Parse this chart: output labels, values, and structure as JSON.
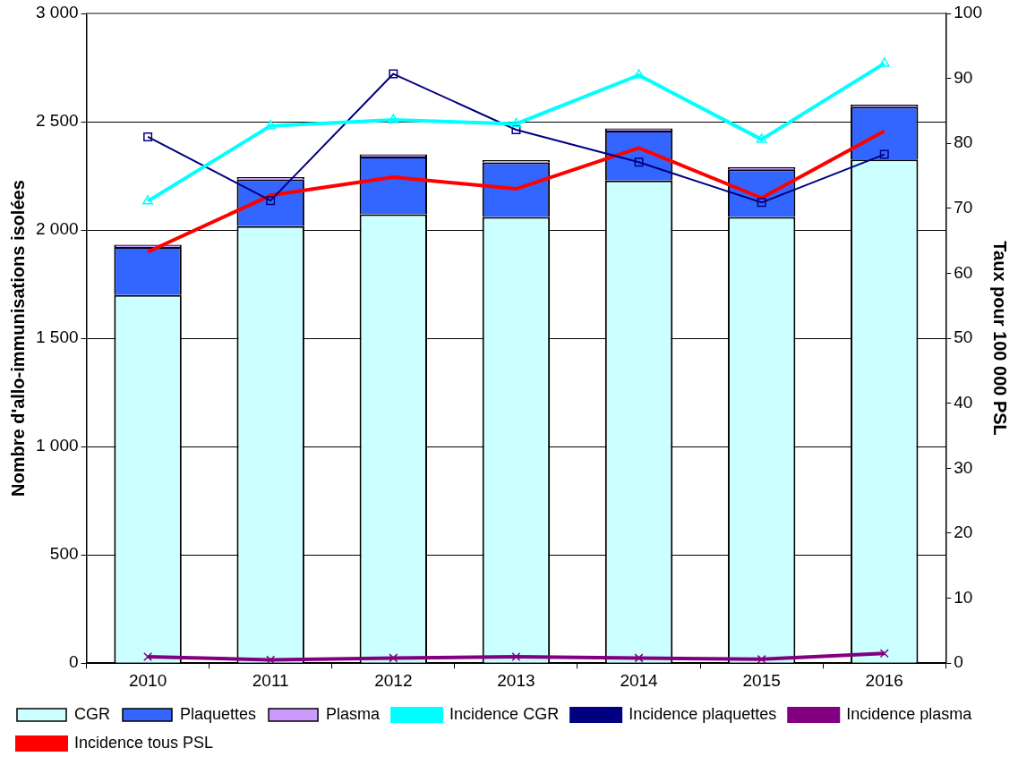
{
  "chart_data": {
    "type": "bar",
    "stacked": true,
    "categories": [
      "2010",
      "2011",
      "2012",
      "2013",
      "2014",
      "2015",
      "2016"
    ],
    "ylabel": "Nombre d'allo-immunisations isolées",
    "y2label": "Taux pour 100 000 PSL",
    "ylim": [
      0,
      3000
    ],
    "yticks": [
      0,
      {
        "value": 500,
        "label": "500"
      },
      {
        "value": 1000,
        "label": "1 000"
      },
      {
        "value": 1500,
        "label": "1 500"
      },
      {
        "value": 2000,
        "label": "2 000"
      },
      {
        "value": 2500,
        "label": "2 500"
      },
      {
        "value": 3000,
        "label": "3 000"
      }
    ],
    "y2lim": [
      0,
      100
    ],
    "y2ticks": [
      0,
      10,
      20,
      30,
      40,
      50,
      60,
      70,
      80,
      90,
      100
    ],
    "grid": "y",
    "legend": "bottom",
    "series": [
      {
        "name": "CGR",
        "color": "#ccffff",
        "values": [
          1700,
          2018,
          2073,
          2060,
          2229,
          2060,
          2326
        ]
      },
      {
        "name": "Plaquettes",
        "color": "#3366ff",
        "values": [
          222,
          216,
          266,
          252,
          230,
          220,
          243
        ]
      },
      {
        "name": "Plasma",
        "color": "#cc99ff",
        "values": [
          10,
          10,
          10,
          10,
          10,
          10,
          10
        ]
      },
      {
        "name": "Incidence CGR",
        "type": "line",
        "axis": "y2",
        "color": "#00ffff",
        "marker": "triangle",
        "values": [
          71.1,
          82.7,
          83.6,
          83.0,
          90.5,
          80.6,
          92.3
        ]
      },
      {
        "name": "Incidence plaquettes",
        "type": "line",
        "axis": "y2",
        "color": "#000080",
        "marker": "square",
        "values": [
          81.0,
          71.2,
          90.7,
          82.1,
          77.1,
          70.9,
          78.3
        ]
      },
      {
        "name": "Incidence plasma",
        "type": "line",
        "axis": "y2",
        "color": "#800080",
        "marker": "cross",
        "values": [
          1.0,
          0.5,
          0.8,
          1.0,
          0.8,
          0.6,
          1.5
        ]
      },
      {
        "name": "Incidence tous PSL",
        "type": "line",
        "axis": "y2",
        "color": "#ff0000",
        "marker": "none",
        "values": [
          63.3,
          72.0,
          74.8,
          73.0,
          79.3,
          71.6,
          81.9
        ]
      }
    ]
  }
}
